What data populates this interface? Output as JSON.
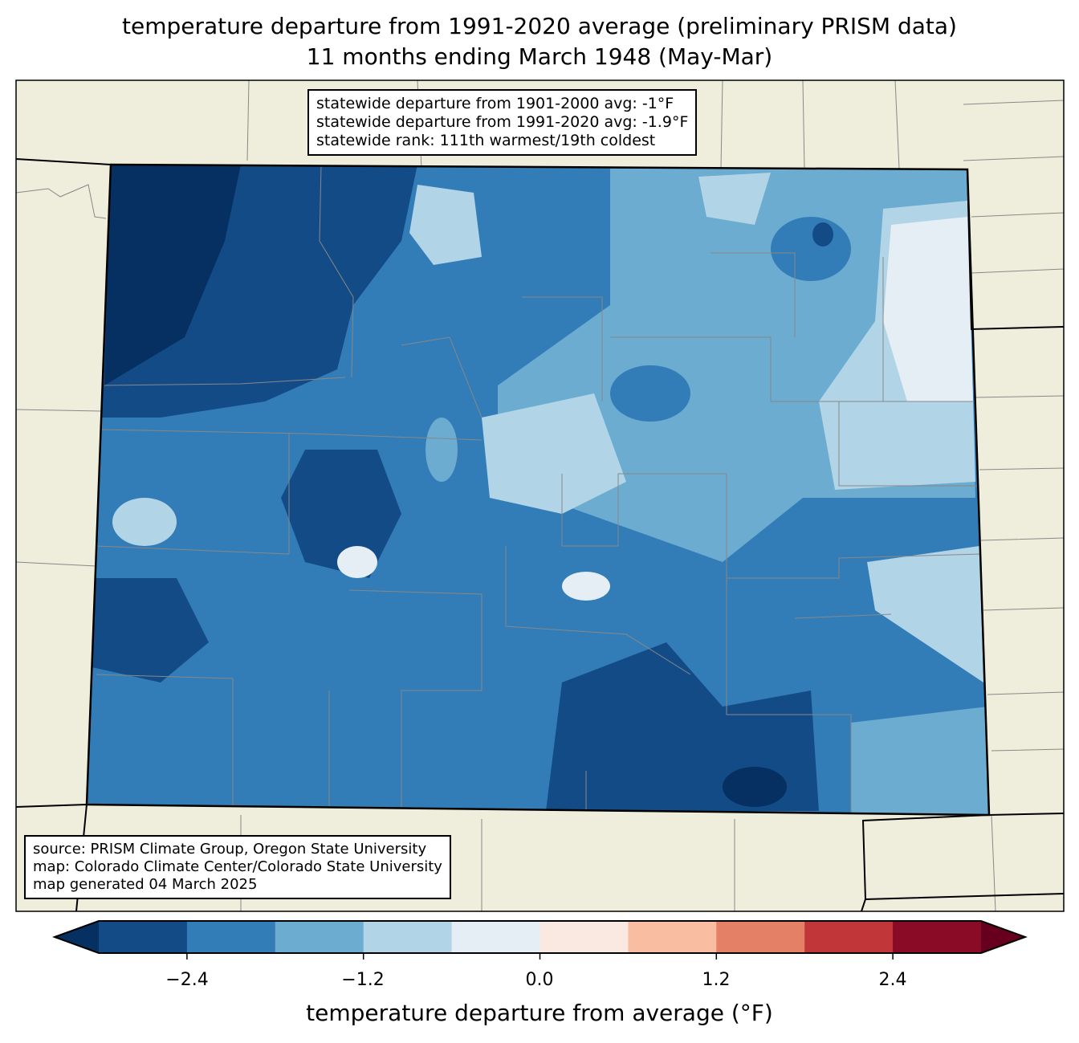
{
  "title_line1": "temperature departure from 1991-2020 average (preliminary PRISM data)",
  "title_line2": "11 months ending March 1948 (May-Mar)",
  "stats": {
    "line1": "statewide departure from 1901-2000 avg: -1°F",
    "line2": "statewide departure from 1991-2020 avg: -1.9°F",
    "line3": "statewide rank: 111th warmest/19th coldest"
  },
  "credits": {
    "source": "source: PRISM Climate Group, Oregon State University",
    "map": "map: Colorado Climate Center/Colorado State University",
    "generated": "map generated 04 March 2025"
  },
  "colorbar": {
    "label": "temperature departure from average (°F)",
    "ticks": [
      "−2.4",
      "−1.2",
      "0.0",
      "1.2",
      "2.4"
    ],
    "bounds": [
      -3.0,
      -2.4,
      -1.8,
      -1.2,
      -0.6,
      0.0,
      0.6,
      1.2,
      1.8,
      2.4,
      3.0
    ],
    "colors": [
      "#134b87",
      "#327db7",
      "#6bacd0",
      "#b1d5e7",
      "#e4eef4",
      "#f9e9e0",
      "#f9bda1",
      "#e48066",
      "#c13639",
      "#8a0b25"
    ],
    "under_color": "#053061",
    "over_color": "#67001f"
  },
  "land_color": "#efeedc"
}
